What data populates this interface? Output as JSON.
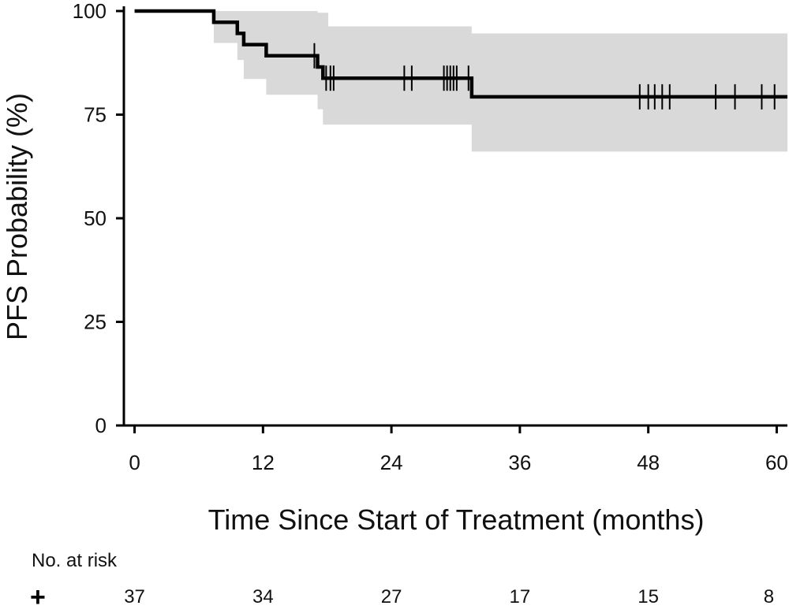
{
  "chart_data": {
    "type": "line",
    "xlabel": "Time Since Start of Treatment (months)",
    "ylabel": "PFS Probability (%)",
    "xlim": [
      -1,
      61
    ],
    "ylim": [
      0,
      100
    ],
    "xticks": [
      0,
      12,
      24,
      36,
      48,
      60
    ],
    "yticks": [
      0,
      25,
      50,
      75,
      100
    ],
    "grid": false,
    "series": [
      {
        "name": "PFS",
        "steps": [
          [
            0,
            100
          ],
          [
            7.4,
            100
          ],
          [
            7.4,
            97.3
          ],
          [
            9.6,
            97.3
          ],
          [
            9.6,
            94.6
          ],
          [
            10.2,
            94.6
          ],
          [
            10.2,
            91.9
          ],
          [
            12.3,
            91.9
          ],
          [
            12.3,
            89.2
          ],
          [
            17.1,
            89.2
          ],
          [
            17.1,
            86.5
          ],
          [
            17.6,
            86.5
          ],
          [
            17.6,
            83.8
          ],
          [
            31.5,
            83.8
          ],
          [
            31.5,
            79.3
          ],
          [
            61,
            79.3
          ]
        ],
        "ci_upper": [
          [
            0,
            100
          ],
          [
            17.1,
            100
          ],
          [
            17.1,
            99.6
          ],
          [
            18.1,
            99.6
          ],
          [
            18.1,
            96.3
          ],
          [
            31.5,
            96.3
          ],
          [
            31.5,
            94.6
          ],
          [
            61,
            94.6
          ]
        ],
        "ci_lower": [
          [
            0,
            100
          ],
          [
            7.4,
            100
          ],
          [
            7.4,
            92.3
          ],
          [
            9.6,
            92.3
          ],
          [
            9.6,
            88.2
          ],
          [
            10.2,
            88.2
          ],
          [
            10.2,
            83.6
          ],
          [
            12.3,
            83.6
          ],
          [
            12.3,
            79.8
          ],
          [
            17.1,
            79.8
          ],
          [
            17.1,
            76.3
          ],
          [
            17.6,
            76.3
          ],
          [
            17.6,
            72.6
          ],
          [
            31.5,
            72.6
          ],
          [
            31.5,
            66.1
          ],
          [
            61,
            66.1
          ]
        ],
        "censor_times": [
          16.8,
          17.9,
          18.3,
          18.6,
          25.2,
          25.9,
          28.9,
          29.2,
          29.5,
          29.8,
          30.1,
          31.2,
          47.2,
          48.0,
          48.6,
          49.3,
          50.0,
          54.3,
          56.1,
          58.6,
          59.8
        ]
      }
    ],
    "risk_table": {
      "title": "No. at risk",
      "symbol": "+",
      "times": [
        0,
        12,
        24,
        36,
        48,
        60
      ],
      "counts": [
        "37",
        "34",
        "27",
        "17",
        "15",
        "8"
      ]
    }
  }
}
